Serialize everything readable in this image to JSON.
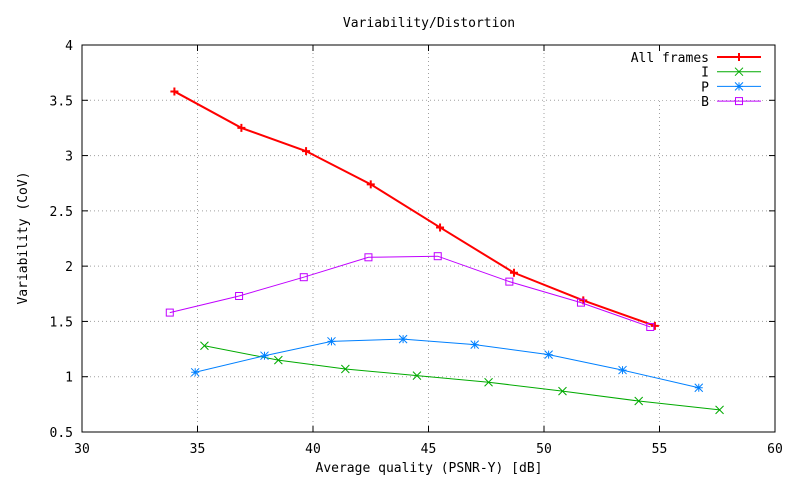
{
  "chart_data": {
    "type": "line",
    "title": "Variability/Distortion",
    "xlabel": "Average quality (PSNR-Y) [dB]",
    "ylabel": "Variability (CoV)",
    "xlim": [
      30,
      60
    ],
    "ylim": [
      0.5,
      4
    ],
    "xticks": [
      30,
      35,
      40,
      45,
      50,
      55,
      60
    ],
    "yticks": [
      0.5,
      1,
      1.5,
      2,
      2.5,
      3,
      3.5,
      4
    ],
    "xtick_labels": [
      "30",
      "35",
      "40",
      "45",
      "50",
      "55",
      "60"
    ],
    "ytick_labels": [
      "0.5",
      "1",
      "1.5",
      "2",
      "2.5",
      "3",
      "3.5",
      "4"
    ],
    "grid": true,
    "legend_position": "top-right",
    "series": [
      {
        "name": "All frames",
        "color": "#ff0000",
        "marker": "plus",
        "line_width": 2,
        "x": [
          34.0,
          36.9,
          39.7,
          42.5,
          45.5,
          48.7,
          51.7,
          54.8
        ],
        "y": [
          3.58,
          3.25,
          3.04,
          2.74,
          2.35,
          1.94,
          1.69,
          1.46
        ]
      },
      {
        "name": "I",
        "color": "#00aa00",
        "marker": "cross",
        "line_width": 1,
        "x": [
          35.3,
          38.5,
          41.4,
          44.5,
          47.6,
          50.8,
          54.1,
          57.6
        ],
        "y": [
          1.28,
          1.15,
          1.07,
          1.01,
          0.95,
          0.87,
          0.78,
          0.7
        ]
      },
      {
        "name": "P",
        "color": "#0080ff",
        "marker": "star",
        "line_width": 1,
        "x": [
          34.9,
          37.9,
          40.8,
          43.9,
          47.0,
          50.2,
          53.4,
          56.7
        ],
        "y": [
          1.04,
          1.19,
          1.32,
          1.34,
          1.29,
          1.2,
          1.06,
          0.9
        ]
      },
      {
        "name": "B",
        "color": "#c000ff",
        "marker": "square",
        "line_width": 1,
        "x": [
          33.8,
          36.8,
          39.6,
          42.4,
          45.4,
          48.5,
          51.6,
          54.6
        ],
        "y": [
          1.58,
          1.73,
          1.9,
          2.08,
          2.09,
          1.86,
          1.67,
          1.45
        ]
      }
    ]
  }
}
